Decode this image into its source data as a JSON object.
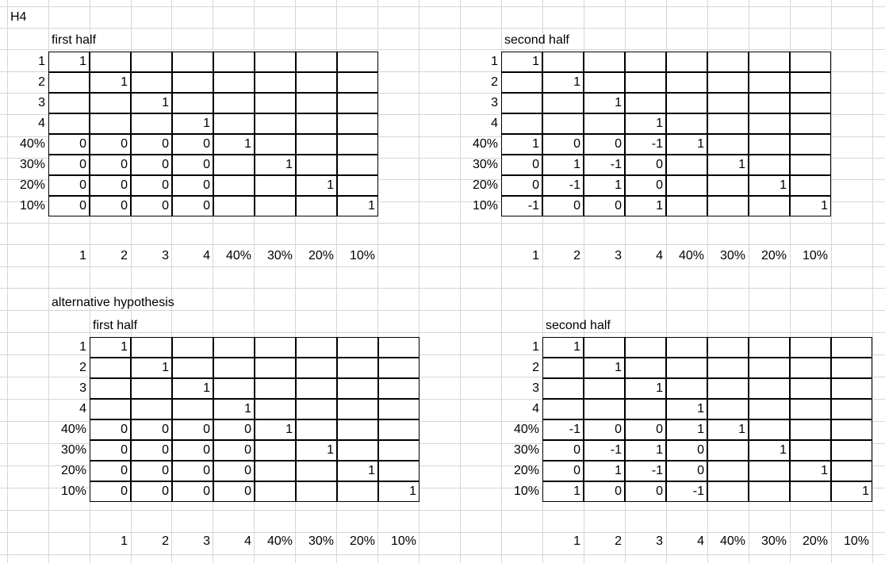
{
  "sheet": {
    "title": "H4",
    "alt_label": "alternative hypothesis",
    "row_labels": [
      "1",
      "2",
      "3",
      "4",
      "40%",
      "30%",
      "20%",
      "10%"
    ],
    "col_labels": [
      "1",
      "2",
      "3",
      "4",
      "40%",
      "30%",
      "20%",
      "10%"
    ],
    "tables": [
      {
        "title": "first half",
        "rows": [
          [
            "1",
            "",
            "",
            "",
            "",
            "",
            "",
            ""
          ],
          [
            "",
            "1",
            "",
            "",
            "",
            "",
            "",
            ""
          ],
          [
            "",
            "",
            "1",
            "",
            "",
            "",
            "",
            ""
          ],
          [
            "",
            "",
            "",
            "1",
            "",
            "",
            "",
            ""
          ],
          [
            "0",
            "0",
            "0",
            "0",
            "1",
            "",
            "",
            ""
          ],
          [
            "0",
            "0",
            "0",
            "0",
            "",
            "1",
            "",
            ""
          ],
          [
            "0",
            "0",
            "0",
            "0",
            "",
            "",
            "1",
            ""
          ],
          [
            "0",
            "0",
            "0",
            "0",
            "",
            "",
            "",
            "1"
          ]
        ]
      },
      {
        "title": "second half",
        "rows": [
          [
            "1",
            "",
            "",
            "",
            "",
            "",
            "",
            ""
          ],
          [
            "",
            "1",
            "",
            "",
            "",
            "",
            "",
            ""
          ],
          [
            "",
            "",
            "1",
            "",
            "",
            "",
            "",
            ""
          ],
          [
            "",
            "",
            "",
            "1",
            "",
            "",
            "",
            ""
          ],
          [
            "1",
            "0",
            "0",
            "-1",
            "1",
            "",
            "",
            ""
          ],
          [
            "0",
            "1",
            "-1",
            "0",
            "",
            "1",
            "",
            ""
          ],
          [
            "0",
            "-1",
            "1",
            "0",
            "",
            "",
            "1",
            ""
          ],
          [
            "-1",
            "0",
            "0",
            "1",
            "",
            "",
            "",
            "1"
          ]
        ]
      },
      {
        "title": "first half",
        "rows": [
          [
            "1",
            "",
            "",
            "",
            "",
            "",
            "",
            ""
          ],
          [
            "",
            "1",
            "",
            "",
            "",
            "",
            "",
            ""
          ],
          [
            "",
            "",
            "1",
            "",
            "",
            "",
            "",
            ""
          ],
          [
            "",
            "",
            "",
            "1",
            "",
            "",
            "",
            ""
          ],
          [
            "0",
            "0",
            "0",
            "0",
            "1",
            "",
            "",
            ""
          ],
          [
            "0",
            "0",
            "0",
            "0",
            "",
            "1",
            "",
            ""
          ],
          [
            "0",
            "0",
            "0",
            "0",
            "",
            "",
            "1",
            ""
          ],
          [
            "0",
            "0",
            "0",
            "0",
            "",
            "",
            "",
            "1"
          ]
        ]
      },
      {
        "title": "second half",
        "rows": [
          [
            "1",
            "",
            "",
            "",
            "",
            "",
            "",
            ""
          ],
          [
            "",
            "1",
            "",
            "",
            "",
            "",
            "",
            ""
          ],
          [
            "",
            "",
            "1",
            "",
            "",
            "",
            "",
            ""
          ],
          [
            "",
            "",
            "",
            "1",
            "",
            "",
            "",
            ""
          ],
          [
            "-1",
            "0",
            "0",
            "1",
            "1",
            "",
            "",
            ""
          ],
          [
            "0",
            "-1",
            "1",
            "0",
            "",
            "1",
            "",
            ""
          ],
          [
            "0",
            "1",
            "-1",
            "0",
            "",
            "",
            "1",
            ""
          ],
          [
            "1",
            "0",
            "0",
            "-1",
            "",
            "",
            "",
            "1"
          ]
        ]
      }
    ]
  }
}
